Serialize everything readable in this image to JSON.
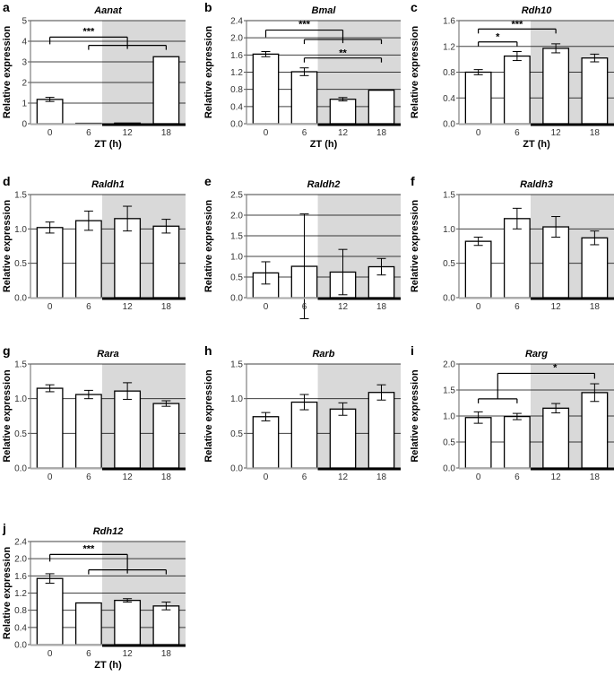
{
  "figure": {
    "xlabel": "ZT (h)",
    "ylabel": "Relative expression",
    "colors": {
      "dark_phase_shading": "#d9d9d9",
      "bar_fill": "#ffffff",
      "bar_edge": "#000000",
      "gridline": "#000000",
      "text": "#000000"
    }
  },
  "chart_data": [
    {
      "panel": "a",
      "type": "bar",
      "title": "Aanat",
      "categories": [
        "0",
        "6",
        "12",
        "18"
      ],
      "values": [
        1.18,
        0.02,
        0.03,
        3.25
      ],
      "errors": [
        0.1,
        0.01,
        0.01,
        0.05
      ],
      "ylim": [
        0,
        5
      ],
      "yticks": [
        "0",
        "1",
        "2",
        "3",
        "4",
        "5"
      ],
      "ytick_values": [
        0,
        1,
        2,
        3,
        4,
        5
      ],
      "xlabel": "ZT (h)",
      "ylabel": "Relative expression",
      "show_xlabel": true,
      "dark_phase_start_index": 2,
      "annotations": [
        {
          "label": "***",
          "type": "bracket-group",
          "from": [
            0
          ],
          "to_group": [
            1,
            3
          ],
          "hub": 2,
          "y_top": 4.2,
          "y_sub": 3.8
        }
      ]
    },
    {
      "panel": "b",
      "type": "bar",
      "title": "Bmal",
      "categories": [
        "0",
        "6",
        "12",
        "18"
      ],
      "values": [
        1.62,
        1.21,
        0.57,
        0.78
      ],
      "errors": [
        0.06,
        0.09,
        0.04,
        0.03
      ],
      "ylim": [
        0,
        2.4
      ],
      "yticks": [
        "0.0",
        "0.4",
        "0.8",
        "1.2",
        "1.6",
        "2.0",
        "2.4"
      ],
      "ytick_values": [
        0,
        0.4,
        0.8,
        1.2,
        1.6,
        2.0,
        2.4
      ],
      "xlabel": "ZT (h)",
      "ylabel": "Relative expression",
      "show_xlabel": true,
      "dark_phase_start_index": 2,
      "annotations": [
        {
          "label": "***",
          "type": "bracket-group",
          "from": [
            0
          ],
          "to_group": [
            1,
            3
          ],
          "hub": 2,
          "y_top": 2.18,
          "y_sub": 1.96
        },
        {
          "label": "**",
          "type": "bracket",
          "from": 1,
          "to": 3,
          "y_top": 1.53
        }
      ]
    },
    {
      "panel": "c",
      "type": "bar",
      "title": "Rdh10",
      "categories": [
        "0",
        "6",
        "12",
        "18"
      ],
      "values": [
        0.8,
        1.05,
        1.17,
        1.02
      ],
      "errors": [
        0.04,
        0.07,
        0.07,
        0.06
      ],
      "ylim": [
        0,
        1.6
      ],
      "yticks": [
        "0.0",
        "0.4",
        "0.8",
        "1.2",
        "1.6"
      ],
      "ytick_values": [
        0,
        0.4,
        0.8,
        1.2,
        1.6
      ],
      "xlabel": "ZT (h)",
      "ylabel": "Relative expression",
      "show_xlabel": true,
      "dark_phase_start_index": 2,
      "annotations": [
        {
          "label": "*",
          "type": "bracket",
          "from": 0,
          "to": 1,
          "y_top": 1.27
        },
        {
          "label": "***",
          "type": "bracket",
          "from": 0,
          "to": 2,
          "y_top": 1.47
        }
      ]
    },
    {
      "panel": "d",
      "type": "bar",
      "title": "Raldh1",
      "categories": [
        "0",
        "6",
        "12",
        "18"
      ],
      "values": [
        1.02,
        1.12,
        1.15,
        1.04
      ],
      "errors": [
        0.08,
        0.14,
        0.18,
        0.1
      ],
      "ylim": [
        0,
        1.5
      ],
      "yticks": [
        "0.0",
        "0.5",
        "1.0",
        "1.5"
      ],
      "ytick_values": [
        0,
        0.5,
        1.0,
        1.5
      ],
      "xlabel": "ZT (h)",
      "ylabel": "Relative expression",
      "show_xlabel": false,
      "dark_phase_start_index": 2,
      "annotations": []
    },
    {
      "panel": "e",
      "type": "bar",
      "title": "Raldh2",
      "categories": [
        "0",
        "6",
        "12",
        "18"
      ],
      "values": [
        0.6,
        0.76,
        0.62,
        0.75
      ],
      "errors": [
        0.27,
        1.27,
        0.55,
        0.2
      ],
      "ylim": [
        0,
        2.5
      ],
      "yticks": [
        "0.0",
        "0.5",
        "1.0",
        "1.5",
        "2.0",
        "2.5"
      ],
      "ytick_values": [
        0,
        0.5,
        1.0,
        1.5,
        2.0,
        2.5
      ],
      "xlabel": "ZT (h)",
      "ylabel": "Relative expression",
      "show_xlabel": false,
      "dark_phase_start_index": 2,
      "annotations": []
    },
    {
      "panel": "f",
      "type": "bar",
      "title": "Raldh3",
      "categories": [
        "0",
        "6",
        "12",
        "18"
      ],
      "values": [
        0.82,
        1.15,
        1.03,
        0.87
      ],
      "errors": [
        0.06,
        0.15,
        0.15,
        0.1
      ],
      "ylim": [
        0,
        1.5
      ],
      "yticks": [
        "0.0",
        "0.5",
        "1.0",
        "1.5"
      ],
      "ytick_values": [
        0,
        0.5,
        1.0,
        1.5
      ],
      "xlabel": "ZT (h)",
      "ylabel": "Relative expression",
      "show_xlabel": false,
      "dark_phase_start_index": 2,
      "annotations": []
    },
    {
      "panel": "g",
      "type": "bar",
      "title": "Rara",
      "categories": [
        "0",
        "6",
        "12",
        "18"
      ],
      "values": [
        1.15,
        1.06,
        1.11,
        0.93
      ],
      "errors": [
        0.05,
        0.06,
        0.12,
        0.04
      ],
      "ylim": [
        0,
        1.5
      ],
      "yticks": [
        "0.0",
        "0.5",
        "1.0",
        "1.5"
      ],
      "ytick_values": [
        0,
        0.5,
        1.0,
        1.5
      ],
      "xlabel": "ZT (h)",
      "ylabel": "Relative expression",
      "show_xlabel": false,
      "dark_phase_start_index": 2,
      "annotations": []
    },
    {
      "panel": "h",
      "type": "bar",
      "title": "Rarb",
      "categories": [
        "0",
        "6",
        "12",
        "18"
      ],
      "values": [
        0.74,
        0.95,
        0.85,
        1.09
      ],
      "errors": [
        0.06,
        0.11,
        0.09,
        0.11
      ],
      "ylim": [
        0,
        1.5
      ],
      "yticks": [
        "0.0",
        "0.5",
        "1.0",
        "1.5"
      ],
      "ytick_values": [
        0,
        0.5,
        1.0,
        1.5
      ],
      "xlabel": "ZT (h)",
      "ylabel": "Relative expression",
      "show_xlabel": false,
      "dark_phase_start_index": 2,
      "annotations": []
    },
    {
      "panel": "i",
      "type": "bar",
      "title": "Rarg",
      "categories": [
        "0",
        "6",
        "12",
        "18"
      ],
      "values": [
        0.97,
        0.99,
        1.15,
        1.45
      ],
      "errors": [
        0.11,
        0.06,
        0.09,
        0.17
      ],
      "ylim": [
        0,
        2.0
      ],
      "yticks": [
        "0.0",
        "0.5",
        "1.0",
        "1.5",
        "2.0"
      ],
      "ytick_values": [
        0,
        0.5,
        1.0,
        1.5,
        2.0
      ],
      "xlabel": "ZT (h)",
      "ylabel": "Relative expression",
      "show_xlabel": false,
      "dark_phase_start_index": 2,
      "annotations": [
        {
          "label": "*",
          "type": "bracket-group-rev",
          "from_group": [
            0,
            1
          ],
          "to": [
            3
          ],
          "y_top": 1.82,
          "y_sub": 1.33
        }
      ]
    },
    {
      "panel": "j",
      "type": "bar",
      "title": "Rdh12",
      "categories": [
        "0",
        "6",
        "12",
        "18"
      ],
      "values": [
        1.54,
        0.97,
        1.03,
        0.9
      ],
      "errors": [
        0.11,
        0.03,
        0.04,
        0.09
      ],
      "ylim": [
        0,
        2.4
      ],
      "yticks": [
        "0.0",
        "0.4",
        "0.8",
        "1.2",
        "1.6",
        "2.0",
        "2.4"
      ],
      "ytick_values": [
        0,
        0.4,
        0.8,
        1.2,
        1.6,
        2.0,
        2.4
      ],
      "xlabel": "ZT (h)",
      "ylabel": "Relative expression",
      "show_xlabel": true,
      "dark_phase_start_index": 2,
      "annotations": [
        {
          "label": "***",
          "type": "bracket-group",
          "from": [
            0
          ],
          "to_group": [
            1,
            3
          ],
          "hub": 2,
          "y_top": 2.1,
          "y_sub": 1.74
        }
      ]
    }
  ]
}
